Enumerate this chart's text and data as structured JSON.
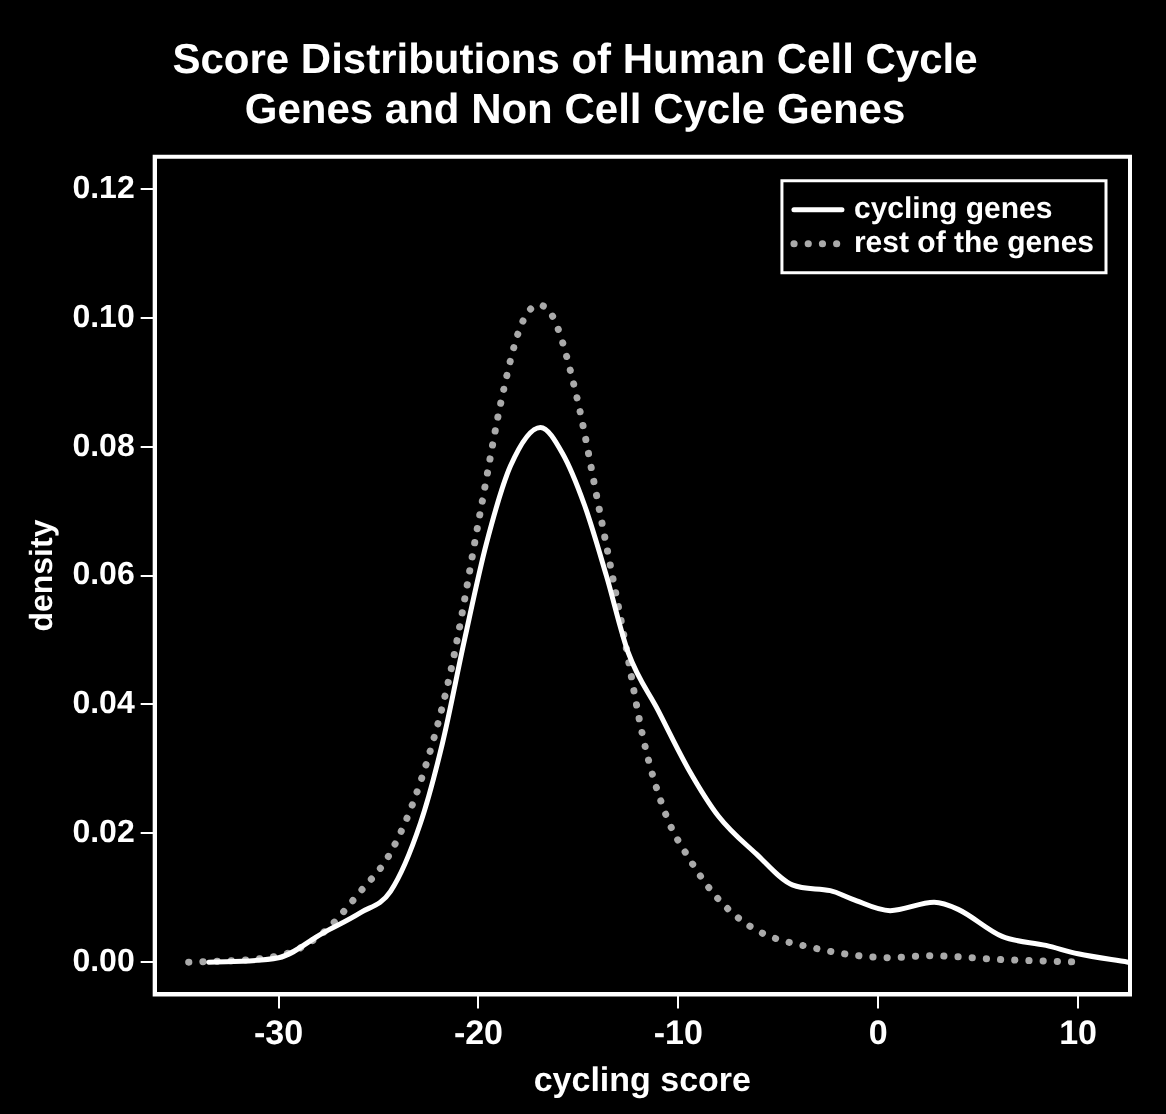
{
  "chart_data": {
    "type": "line",
    "title": "Score Distributions of Human Cell Cycle Genes and Non Cell Cycle Genes",
    "xlabel": "cycling score",
    "ylabel": "density",
    "xlim": [
      -36.2,
      12.6
    ],
    "xticks": [
      -30,
      -20,
      -10,
      0,
      10
    ],
    "ylim": [
      -0.005,
      0.125
    ],
    "yticks": [
      {
        "value": 0,
        "label": "0.00"
      },
      {
        "value": 0.02,
        "label": "0.02"
      },
      {
        "value": 0.04,
        "label": "0.04"
      },
      {
        "value": 0.06,
        "label": "0.06"
      },
      {
        "value": 0.08,
        "label": "0.08"
      },
      {
        "value": 0.1,
        "label": "0.10"
      },
      {
        "value": 0.12,
        "label": "0.12"
      }
    ],
    "grid": false,
    "legend": "top right",
    "marker": "none",
    "series": [
      {
        "name": "cycling genes",
        "color": "#ffffff",
        "line_style": "solid",
        "x": [
          -33.5,
          -30,
          -27.8,
          -25.9,
          -24.4,
          -22.9,
          -21.8,
          -20.7,
          -19.6,
          -18.4,
          -16.9,
          -15.8,
          -14.7,
          -13.6,
          -12.5,
          -11.0,
          -9.5,
          -8.0,
          -6.1,
          -4.3,
          -2.4,
          -1.3,
          0.6,
          2.8,
          4.0,
          6.2,
          8.4,
          10,
          12.5
        ],
        "values": [
          0,
          0.0007,
          0.0045,
          0.0077,
          0.011,
          0.0216,
          0.034,
          0.05,
          0.065,
          0.077,
          0.083,
          0.079,
          0.071,
          0.06,
          0.048,
          0.039,
          0.03,
          0.0227,
          0.0168,
          0.012,
          0.0111,
          0.0098,
          0.008,
          0.0093,
          0.0082,
          0.004,
          0.0026,
          0.0013,
          0
        ]
      },
      {
        "name": "rest of the genes",
        "color": "#aaaaaa",
        "line_style": "dotted",
        "x": [
          -34.5,
          -30,
          -27.8,
          -25.9,
          -24.4,
          -22.9,
          -21.4,
          -19.9,
          -18.8,
          -17.9,
          -17.0,
          -16.2,
          -15.1,
          -14.0,
          -12.8,
          -11.7,
          -10.6,
          -9.5,
          -8.0,
          -6.1,
          -3.5,
          0.6,
          2.5,
          6.2,
          10.3
        ],
        "values": [
          0,
          0.001,
          0.0045,
          0.011,
          0.017,
          0.028,
          0.045,
          0.07,
          0.088,
          0.0986,
          0.102,
          0.0997,
          0.088,
          0.071,
          0.052,
          0.034,
          0.0227,
          0.0163,
          0.0098,
          0.005,
          0.0024,
          0.0007,
          0.001,
          0.0004,
          0
        ]
      }
    ]
  }
}
